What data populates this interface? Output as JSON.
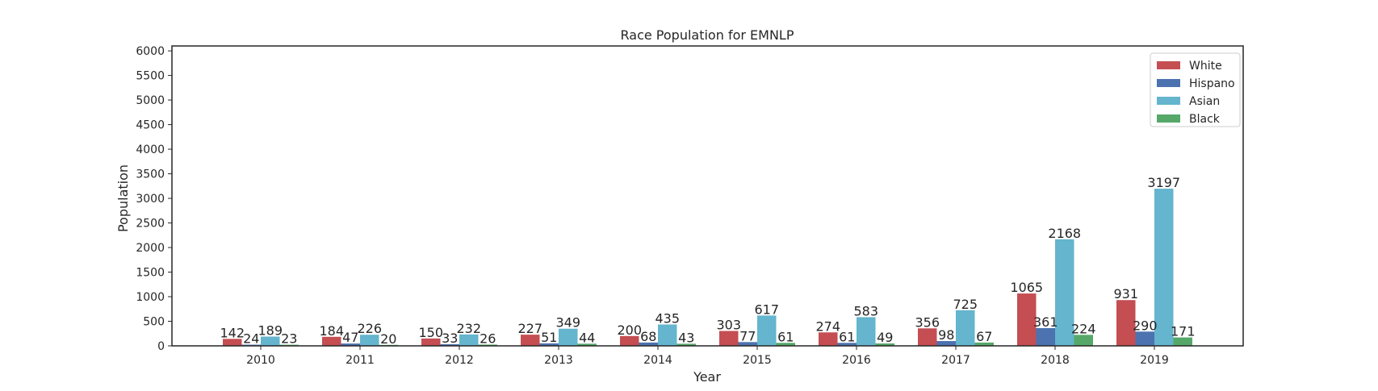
{
  "chart_data": {
    "type": "bar",
    "title": "Race Population for EMNLP",
    "xlabel": "Year",
    "ylabel": "Population",
    "ylim": [
      0,
      6100
    ],
    "yticks": [
      0,
      500,
      1000,
      1500,
      2000,
      2500,
      3000,
      3500,
      4000,
      4500,
      5000,
      5500,
      6000
    ],
    "categories": [
      "2010",
      "2011",
      "2012",
      "2013",
      "2014",
      "2015",
      "2016",
      "2017",
      "2018",
      "2019"
    ],
    "grid": false,
    "legend_position": "top-right",
    "series": [
      {
        "name": "White",
        "color": "#c44e52",
        "values": [
          142,
          184,
          150,
          227,
          200,
          303,
          274,
          356,
          1065,
          931
        ]
      },
      {
        "name": "Hispano",
        "color": "#4c72b0",
        "values": [
          24,
          47,
          33,
          51,
          68,
          77,
          61,
          98,
          361,
          290
        ]
      },
      {
        "name": "Asian",
        "color": "#64b5cd",
        "values": [
          189,
          226,
          232,
          349,
          435,
          617,
          583,
          725,
          2168,
          3197
        ]
      },
      {
        "name": "Black",
        "color": "#55a868",
        "values": [
          23,
          20,
          26,
          44,
          43,
          61,
          49,
          67,
          224,
          171
        ]
      }
    ]
  }
}
